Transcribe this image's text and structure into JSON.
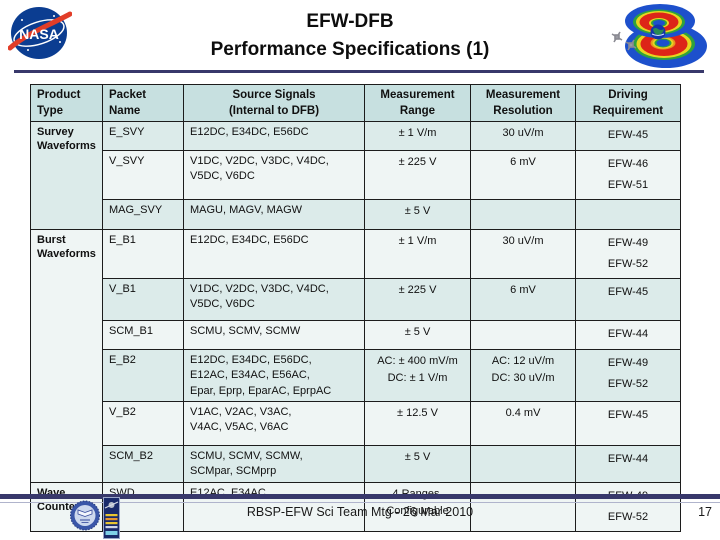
{
  "slide": {
    "title_line1": "EFW-DFB",
    "title_line2": "Performance Specifications (1)",
    "footer_text": "RBSP-EFW Sci Team Mtg - 26 Mar 2010",
    "page_number": "17"
  },
  "images": {
    "header_left": "nasa-logo",
    "header_right": "radiation-belts-visualization",
    "footer_left": "university-seal",
    "footer_left2": "mission-badge"
  },
  "colors": {
    "rule_navy": "#38386b",
    "table_header_bg": "#c7e0e0",
    "row_teal": "#dcebea",
    "row_light": "#eff5f4",
    "nasa_blue": "#0b3d91",
    "nasa_red": "#e23d28",
    "belt_blue": "#1d50cc",
    "belt_green": "#2fa23c",
    "belt_yellow": "#e8d51f",
    "belt_red": "#dd2418"
  },
  "table": {
    "columns": [
      "Product\nType",
      "Packet\nName",
      "Source Signals\n(Internal to DFB)",
      "Measurement\nRange",
      "Measurement\nResolution",
      "Driving\nRequirement"
    ],
    "groups": [
      {
        "product": "Survey\nWaveforms",
        "rows": [
          {
            "packet": "E_SVY",
            "source": "E12DC, E34DC, E56DC",
            "range": "± 1 V/m",
            "resolution": "30 uV/m",
            "driving": "EFW-45"
          },
          {
            "packet": "V_SVY",
            "source": "V1DC, V2DC, V3DC, V4DC,\nV5DC, V6DC",
            "range": "± 225 V",
            "resolution": "6 mV",
            "driving": "EFW-46\nEFW-51"
          },
          {
            "packet": "MAG_SVY",
            "source": "MAGU, MAGV, MAGW",
            "range": "± 5 V",
            "resolution": "",
            "driving": ""
          }
        ]
      },
      {
        "product": "Burst\nWaveforms",
        "rows": [
          {
            "packet": "E_B1",
            "source": "E12DC, E34DC, E56DC",
            "range": "± 1 V/m",
            "resolution": "30 uV/m",
            "driving": "EFW-49\nEFW-52"
          },
          {
            "packet": "V_B1",
            "source": "V1DC, V2DC, V3DC, V4DC,\nV5DC, V6DC",
            "range": "± 225 V",
            "resolution": "6 mV",
            "driving": "EFW-45"
          },
          {
            "packet": "SCM_B1",
            "source": "SCMU, SCMV, SCMW",
            "range": "± 5 V",
            "resolution": "",
            "driving": "EFW-44"
          },
          {
            "packet": "E_B2",
            "source": "E12DC, E34DC, E56DC,\nE12AC, E34AC, E56AC,\nEpar, Eprp, EparAC, EprpAC",
            "range": "AC: ± 400 mV/m\nDC: ± 1 V/m",
            "resolution": "AC: 12 uV/m\nDC: 30 uV/m",
            "driving": "EFW-49\nEFW-52"
          },
          {
            "packet": "V_B2",
            "source": "V1AC, V2AC, V3AC,\nV4AC, V5AC, V6AC",
            "range": "± 12.5 V",
            "resolution": "0.4 mV",
            "driving": "EFW-45"
          },
          {
            "packet": "SCM_B2",
            "source": "SCMU, SCMV, SCMW,\nSCMpar, SCMprp",
            "range": "± 5 V",
            "resolution": "",
            "driving": "EFW-44"
          }
        ]
      },
      {
        "product": "Wave\nCounter",
        "rows": [
          {
            "packet": "SWD",
            "source": "E12AC, E34AC",
            "range": "4 Ranges,\nConfigurable",
            "resolution": "",
            "driving": "EFW-49\nEFW-52"
          }
        ]
      }
    ]
  }
}
